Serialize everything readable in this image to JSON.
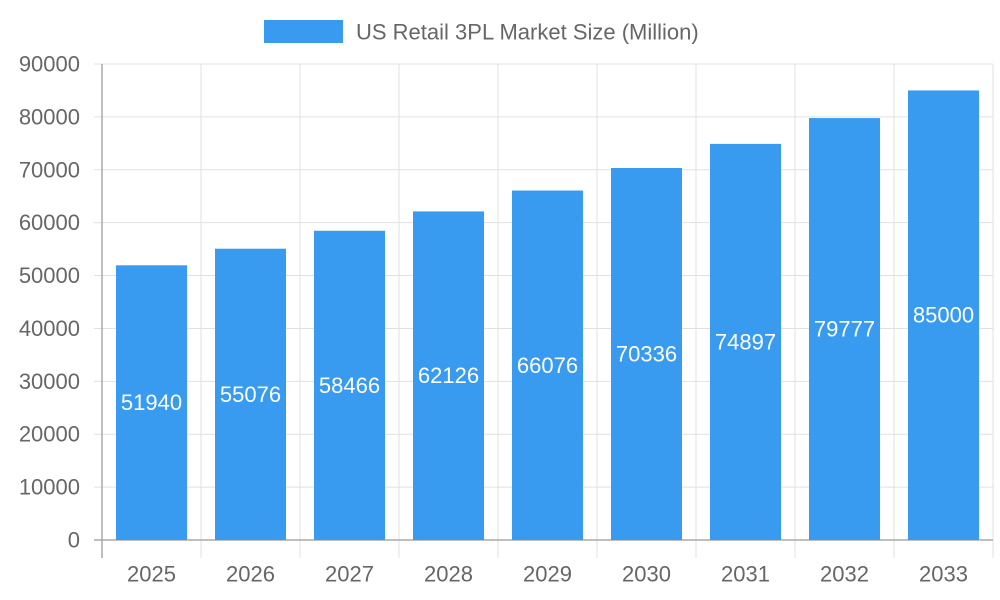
{
  "chart_data": {
    "type": "bar",
    "title": "",
    "xlabel": "",
    "ylabel": "",
    "categories": [
      "2025",
      "2026",
      "2027",
      "2028",
      "2029",
      "2030",
      "2031",
      "2032",
      "2033"
    ],
    "series": [
      {
        "name": "US Retail 3PL Market Size (Million)",
        "values": [
          51940,
          55076,
          58466,
          62126,
          66076,
          70336,
          74897,
          79777,
          85000
        ],
        "color": "#389bf0"
      }
    ],
    "ylim": [
      0,
      90000
    ],
    "yticks": [
      0,
      10000,
      20000,
      30000,
      40000,
      50000,
      60000,
      70000,
      80000,
      90000
    ],
    "grid": true,
    "legend": "top",
    "data_labels": true
  }
}
